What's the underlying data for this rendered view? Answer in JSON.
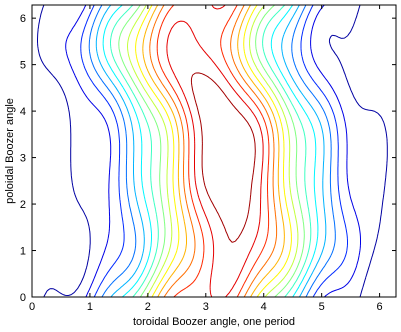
{
  "chart_data": {
    "type": "contour",
    "title": "",
    "xlabel": "toroidal Boozer angle, one period",
    "ylabel": "poloidal Boozer angle",
    "xlim": [
      0,
      6.2832
    ],
    "ylim": [
      0,
      6.2832
    ],
    "x_ticks": [
      "0",
      "1",
      "2",
      "3",
      "4",
      "5",
      "6"
    ],
    "y_ticks": [
      "0",
      "1",
      "2",
      "3",
      "4",
      "5",
      "6"
    ],
    "grid": false,
    "colormap": "jet",
    "levels": 15,
    "colors": {
      "low": "#00008f",
      "mid": "#00ffff",
      "high": "#800000"
    }
  }
}
